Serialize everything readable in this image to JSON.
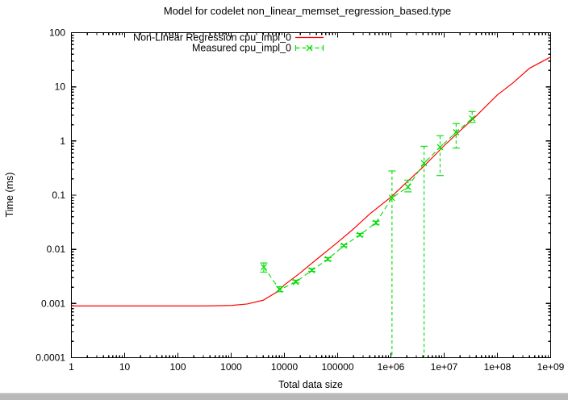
{
  "window": {
    "background": "#ffffff",
    "scrollbar_color": "#b9b9b9"
  },
  "chart_data": {
    "type": "line",
    "title": "Model for codelet non_linear_memset_regression_based.type",
    "xlabel": "Total data size",
    "ylabel": "Time (ms)",
    "x_scale": "log",
    "y_scale": "log",
    "xlim": [
      1,
      1000000000
    ],
    "ylim": [
      0.0001,
      100
    ],
    "grid": false,
    "legend_position": "top-center-inside",
    "border_color": "#000000",
    "x_ticks": [
      {
        "v": 1,
        "label": "1"
      },
      {
        "v": 10,
        "label": "10"
      },
      {
        "v": 100,
        "label": "100"
      },
      {
        "v": 1000,
        "label": "1000"
      },
      {
        "v": 10000,
        "label": "10000"
      },
      {
        "v": 100000,
        "label": "100000"
      },
      {
        "v": 1000000,
        "label": "1e+06"
      },
      {
        "v": 10000000,
        "label": "1e+07"
      },
      {
        "v": 100000000,
        "label": "1e+08"
      },
      {
        "v": 1000000000,
        "label": "1e+09"
      }
    ],
    "y_ticks": [
      {
        "v": 100,
        "label": "100"
      },
      {
        "v": 10,
        "label": "10"
      },
      {
        "v": 1,
        "label": "1"
      },
      {
        "v": 0.1,
        "label": "0.1"
      },
      {
        "v": 0.01,
        "label": "0.01"
      },
      {
        "v": 0.001,
        "label": "0.001"
      },
      {
        "v": 0.0001,
        "label": "0.0001"
      }
    ],
    "series": [
      {
        "name": "Non-Linear Regression cpu_impl_0",
        "style": "solid-line",
        "color": "#ff0000",
        "x": [
          1,
          100,
          316,
          1000,
          2000,
          4000,
          7000,
          10000,
          20000,
          40000,
          100000,
          200000,
          400000,
          1000000,
          2000000,
          4000000,
          10000000,
          20000000,
          40000000,
          100000000,
          200000000,
          400000000,
          1000000000
        ],
        "y": [
          0.0009,
          0.0009,
          0.0009,
          0.00092,
          0.00098,
          0.00115,
          0.0016,
          0.0022,
          0.0037,
          0.0065,
          0.0135,
          0.024,
          0.045,
          0.092,
          0.175,
          0.33,
          0.82,
          1.55,
          2.9,
          7.1,
          12,
          22,
          35.5
        ]
      },
      {
        "name": "Measured cpu_impl_0",
        "style": "dashed-line-x-markers-with-errorbars",
        "color": "#00dd00",
        "points": [
          {
            "x": 4096,
            "y": 0.0047,
            "lo": 0.0038,
            "hi": 0.0056
          },
          {
            "x": 8192,
            "y": 0.0018,
            "lo": 0.00165,
            "hi": 0.00205
          },
          {
            "x": 16384,
            "y": 0.0025,
            "lo": 0.0024,
            "hi": 0.0027
          },
          {
            "x": 32768,
            "y": 0.0041,
            "lo": 0.0039,
            "hi": 0.0044
          },
          {
            "x": 65536,
            "y": 0.0066,
            "lo": 0.0062,
            "hi": 0.007
          },
          {
            "x": 131072,
            "y": 0.0117,
            "lo": 0.0112,
            "hi": 0.0123
          },
          {
            "x": 262144,
            "y": 0.0185,
            "lo": 0.0175,
            "hi": 0.0196
          },
          {
            "x": 524288,
            "y": 0.031,
            "lo": 0.029,
            "hi": 0.033
          },
          {
            "x": 1048576,
            "y": 0.089,
            "lo": 0.0001,
            "hi": 0.28,
            "low_clipped": true
          },
          {
            "x": 2097152,
            "y": 0.142,
            "lo": 0.115,
            "hi": 0.19
          },
          {
            "x": 4194304,
            "y": 0.39,
            "lo": 0.0001,
            "hi": 0.8,
            "low_clipped": true
          },
          {
            "x": 8388608,
            "y": 0.77,
            "lo": 0.23,
            "hi": 1.25
          },
          {
            "x": 16777216,
            "y": 1.45,
            "lo": 0.74,
            "hi": 2.1
          },
          {
            "x": 33554432,
            "y": 2.6,
            "lo": 2.2,
            "hi": 3.5
          }
        ]
      }
    ]
  }
}
